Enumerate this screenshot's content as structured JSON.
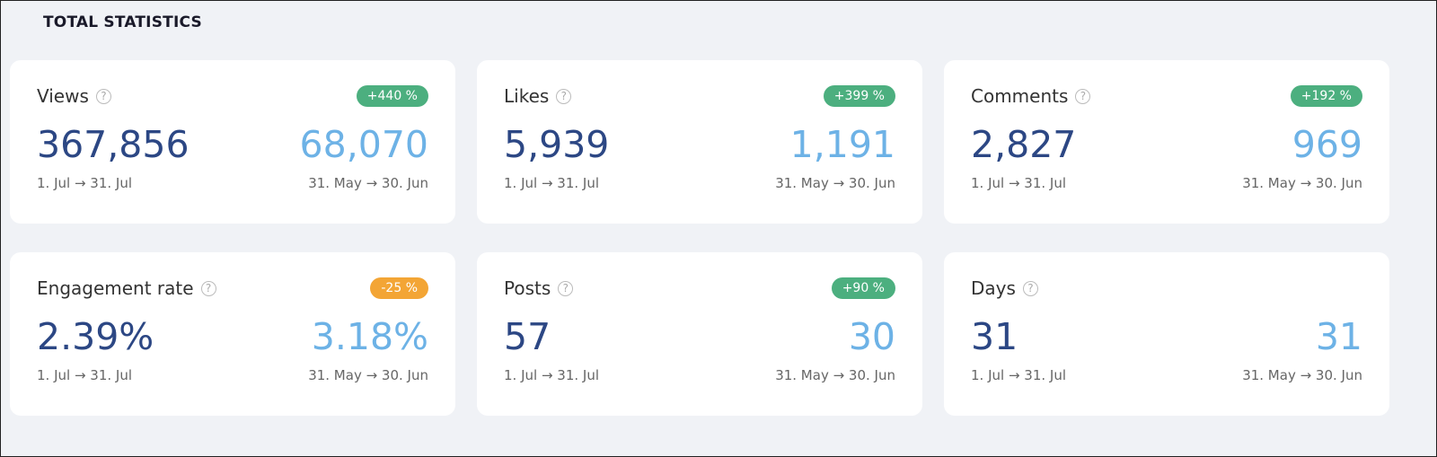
{
  "title": "TOTAL STATISTICS",
  "colors": {
    "positive": "#4caf7f",
    "negative": "#f3a535",
    "current": "#2c4784",
    "previous": "#6db2e6"
  },
  "cards": [
    {
      "label": "Views",
      "badge": "+440 %",
      "trend": "positive",
      "current": "367,856",
      "previous": "68,070",
      "current_range": "1. Jul → 31. Jul",
      "previous_range": "31. May → 30. Jun"
    },
    {
      "label": "Likes",
      "badge": "+399 %",
      "trend": "positive",
      "current": "5,939",
      "previous": "1,191",
      "current_range": "1. Jul → 31. Jul",
      "previous_range": "31. May → 30. Jun"
    },
    {
      "label": "Comments",
      "badge": "+192 %",
      "trend": "positive",
      "current": "2,827",
      "previous": "969",
      "current_range": "1. Jul → 31. Jul",
      "previous_range": "31. May → 30. Jun"
    },
    {
      "label": "Engagement rate",
      "badge": "-25 %",
      "trend": "negative",
      "current": "2.39%",
      "previous": "3.18%",
      "current_range": "1. Jul → 31. Jul",
      "previous_range": "31. May → 30. Jun"
    },
    {
      "label": "Posts",
      "badge": "+90 %",
      "trend": "positive",
      "current": "57",
      "previous": "30",
      "current_range": "1. Jul → 31. Jul",
      "previous_range": "31. May → 30. Jun"
    },
    {
      "label": "Days",
      "badge": "",
      "trend": "",
      "current": "31",
      "previous": "31",
      "current_range": "1. Jul → 31. Jul",
      "previous_range": "31. May → 30. Jun"
    }
  ]
}
